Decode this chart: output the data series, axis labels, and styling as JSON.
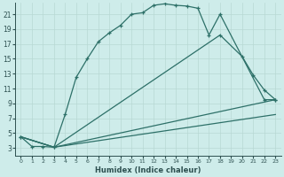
{
  "xlabel": "Humidex (Indice chaleur)",
  "bg_color": "#ceecea",
  "grid_color": "#b8d8d4",
  "line_color": "#2d7068",
  "xlim": [
    -0.5,
    23.5
  ],
  "ylim": [
    2.0,
    22.5
  ],
  "xtick_labels": [
    "0",
    "1",
    "2",
    "3",
    "4",
    "5",
    "6",
    "7",
    "8",
    "9",
    "10",
    "11",
    "12",
    "13",
    "14",
    "15",
    "16",
    "17",
    "18",
    "19",
    "20",
    "21",
    "22",
    "23"
  ],
  "xticks": [
    0,
    1,
    2,
    3,
    4,
    5,
    6,
    7,
    8,
    9,
    10,
    11,
    12,
    13,
    14,
    15,
    16,
    17,
    18,
    19,
    20,
    21,
    22,
    23
  ],
  "yticks": [
    3,
    5,
    7,
    9,
    11,
    13,
    15,
    17,
    19,
    21
  ],
  "curve1_x": [
    0,
    1,
    2,
    3,
    4,
    5,
    6,
    7,
    8,
    9,
    10,
    11,
    12,
    13,
    14,
    15,
    16,
    17,
    18,
    22,
    23
  ],
  "curve1_y": [
    4.5,
    3.2,
    3.2,
    3.1,
    7.5,
    12.5,
    15.0,
    17.3,
    18.5,
    19.5,
    21.0,
    21.2,
    22.2,
    22.4,
    22.2,
    22.1,
    21.8,
    18.2,
    21.0,
    9.5,
    9.5
  ],
  "curve2_x": [
    0,
    3,
    18,
    20,
    21,
    22,
    23
  ],
  "curve2_y": [
    4.5,
    3.1,
    18.2,
    15.3,
    12.8,
    10.8,
    9.5
  ],
  "curve3_x": [
    0,
    3,
    23
  ],
  "curve3_y": [
    4.5,
    3.1,
    9.5
  ],
  "curve4_x": [
    0,
    3,
    23
  ],
  "curve4_y": [
    4.5,
    3.1,
    7.5
  ]
}
